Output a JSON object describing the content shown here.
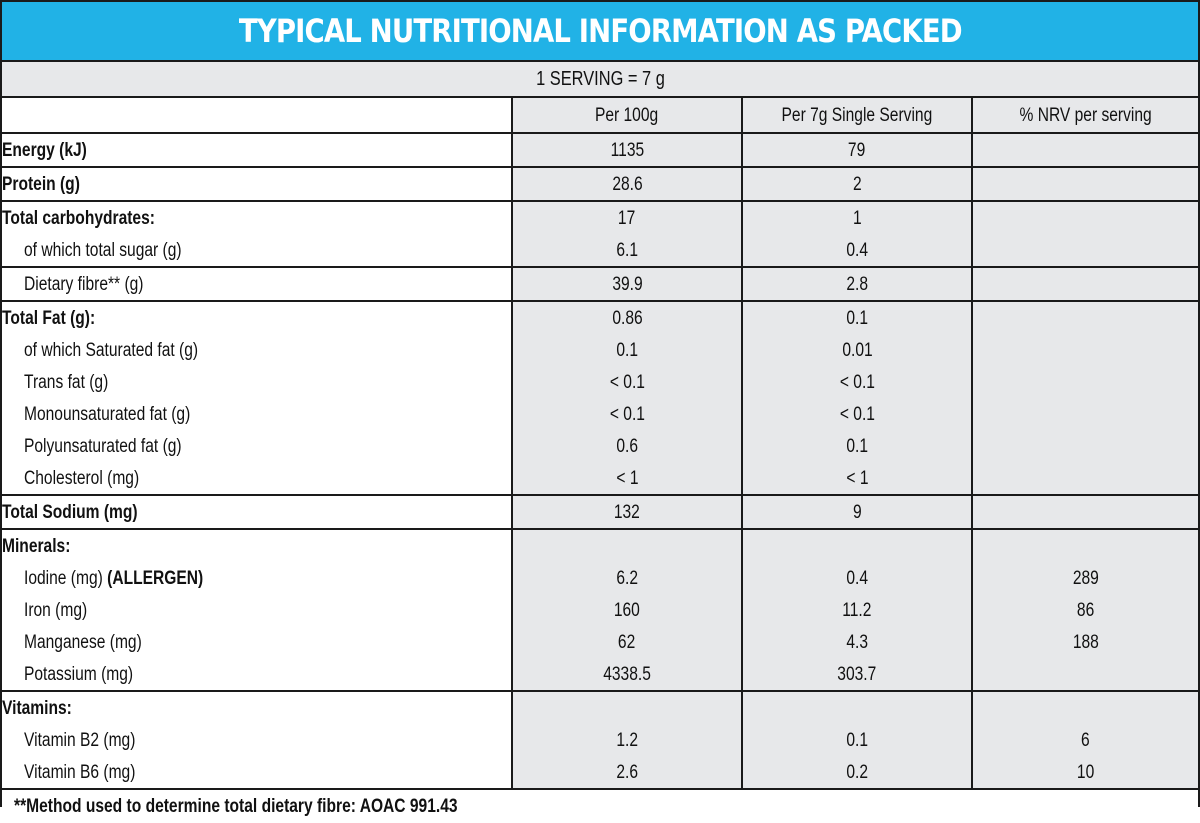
{
  "title": "TYPICAL NUTRITIONAL INFORMATION AS PACKED",
  "serving": "1 SERVING = 7 g",
  "columns": [
    "",
    "Per 100g",
    "Per 7g Single Serving",
    "% NRV per serving"
  ],
  "rows": [
    {
      "label": "Energy (kJ)",
      "per100": "1135",
      "perServing": "79",
      "nrv": ""
    },
    {
      "label": "Protein (g)",
      "per100": "28.6",
      "perServing": "2",
      "nrv": ""
    },
    {
      "label": "Total carbohydrates:",
      "per100": "17",
      "perServing": "1",
      "nrv": ""
    },
    {
      "label": "of which total sugar (g)",
      "per100": "6.1",
      "perServing": "0.4",
      "nrv": ""
    },
    {
      "label": "Dietary fibre** (g)",
      "per100": "39.9",
      "perServing": "2.8",
      "nrv": ""
    },
    {
      "label": "Total Fat (g):",
      "per100": "0.86",
      "perServing": "0.1",
      "nrv": ""
    },
    {
      "label": "of which Saturated fat (g)",
      "per100": "0.1",
      "perServing": "0.01",
      "nrv": ""
    },
    {
      "label": "Trans fat (g)",
      "per100": "< 0.1",
      "perServing": "< 0.1",
      "nrv": ""
    },
    {
      "label": "Monounsaturated fat (g)",
      "per100": "< 0.1",
      "perServing": "< 0.1",
      "nrv": ""
    },
    {
      "label": "Polyunsaturated fat (g)",
      "per100": "0.6",
      "perServing": "0.1",
      "nrv": ""
    },
    {
      "label": "Cholesterol (mg)",
      "per100": "< 1",
      "perServing": "< 1",
      "nrv": ""
    },
    {
      "label": "Total Sodium (mg)",
      "per100": "132",
      "perServing": "9",
      "nrv": ""
    },
    {
      "label": "Minerals:",
      "per100": "",
      "perServing": "",
      "nrv": ""
    },
    {
      "label": "Iodine (mg) ",
      "label_bold": "(ALLERGEN)",
      "per100": "6.2",
      "perServing": "0.4",
      "nrv": "289"
    },
    {
      "label": "Iron (mg)",
      "per100": "160",
      "perServing": "11.2",
      "nrv": "86"
    },
    {
      "label": "Manganese (mg)",
      "per100": "62",
      "perServing": "4.3",
      "nrv": "188"
    },
    {
      "label": "Potassium (mg)",
      "per100": "4338.5",
      "perServing": "303.7",
      "nrv": ""
    },
    {
      "label": "Vitamins:",
      "per100": "",
      "perServing": "",
      "nrv": ""
    },
    {
      "label": "Vitamin B2 (mg)",
      "per100": "1.2",
      "perServing": "0.1",
      "nrv": "6"
    },
    {
      "label": "Vitamin B6 (mg)",
      "per100": "2.6",
      "perServing": "0.2",
      "nrv": "10"
    }
  ],
  "footnote": "**Method used to determine total dietary fibre: AOAC 991.43",
  "colors": {
    "banner": "#21b2e6",
    "cell_fill": "#e7e8ea",
    "border": "#1a1a1a"
  }
}
